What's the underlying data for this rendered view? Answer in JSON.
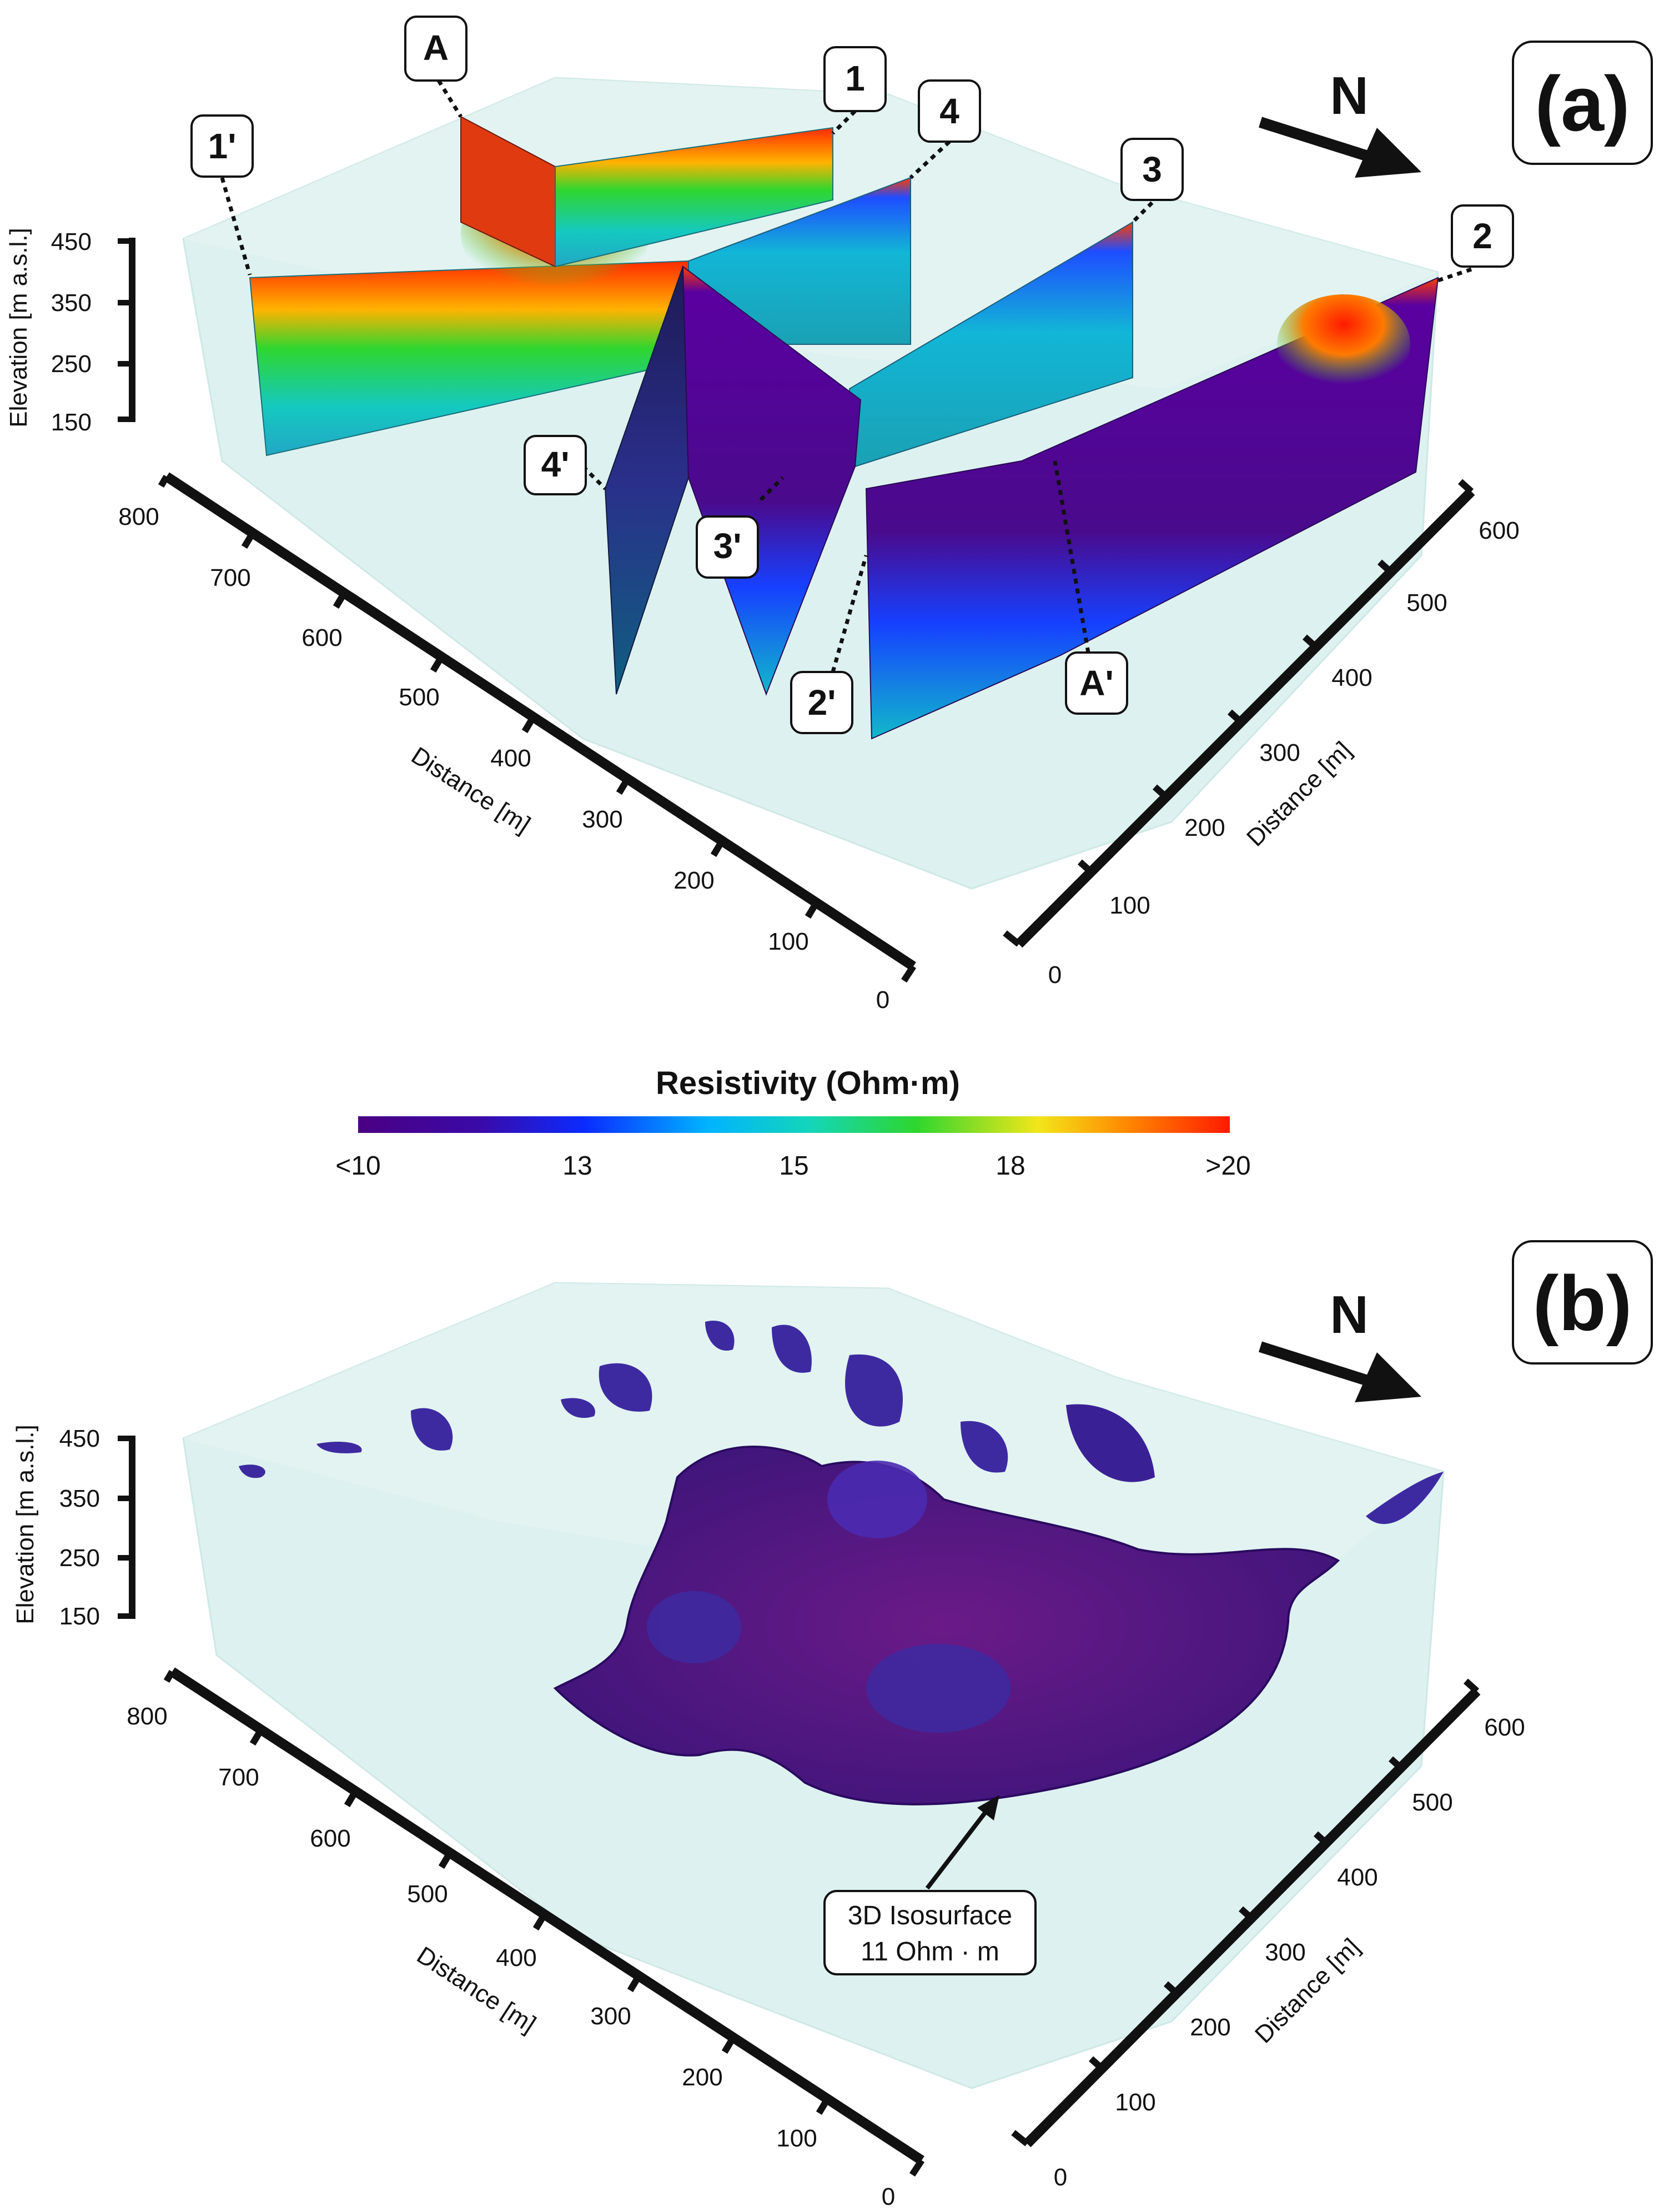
{
  "panels": [
    {
      "id": "a",
      "label": "(a)",
      "north": "N",
      "elevation_axis": {
        "title": "Elevation [m a.s.l.]",
        "ticks": [
          "450",
          "350",
          "250",
          "150"
        ]
      },
      "left_axis": {
        "title": "Distance [m]",
        "ticks": [
          "800",
          "700",
          "600",
          "500",
          "400",
          "300",
          "200",
          "100",
          "0"
        ]
      },
      "right_axis": {
        "title": "Distance [m]",
        "ticks": [
          "0",
          "100",
          "200",
          "300",
          "400",
          "500",
          "600"
        ]
      },
      "profile_labels": [
        "A",
        "1'",
        "1",
        "4",
        "3",
        "2",
        "4'",
        "3'",
        "2'",
        "A'"
      ]
    },
    {
      "id": "b",
      "label": "(b)",
      "north": "N",
      "elevation_axis": {
        "title": "Elevation [m a.s.l.]",
        "ticks": [
          "450",
          "350",
          "250",
          "150"
        ]
      },
      "left_axis": {
        "title": "Distance [m]",
        "ticks": [
          "800",
          "700",
          "600",
          "500",
          "400",
          "300",
          "200",
          "100",
          "0"
        ]
      },
      "right_axis": {
        "title": "Distance [m]",
        "ticks": [
          "0",
          "100",
          "200",
          "300",
          "400",
          "500",
          "600"
        ]
      },
      "annotation": {
        "line1": "3D Isosurface",
        "line2": "11 Ohm · m"
      }
    }
  ],
  "colorbar": {
    "title": "Resistivity (Ohm·m)",
    "ticks": [
      "<10",
      "13",
      "15",
      "18",
      ">20"
    ],
    "colors": [
      "#4b0082",
      "#3a0aa8",
      "#0b2bff",
      "#00b3ff",
      "#14d6b8",
      "#2ed62e",
      "#f2e61a",
      "#ff8a00",
      "#ff1a00"
    ]
  }
}
